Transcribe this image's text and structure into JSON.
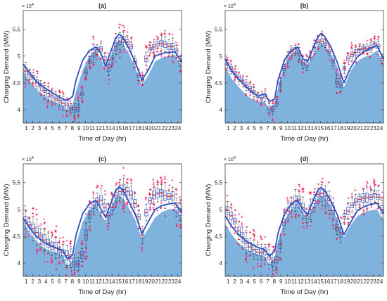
{
  "figure": {
    "colors": {
      "area": "#7fb2dd",
      "line": "#2a4fbf",
      "box": "#3b57c9",
      "whisker": "#222222",
      "median": "#e11b1b",
      "outlier": "#ff2aa8"
    }
  },
  "chart_data": [
    {
      "type": "area",
      "title": "(a)",
      "xlabel": "Time of Day (hr)",
      "ylabel": "Charging Demand (MW)",
      "y_exponent_label": "× 10^4",
      "xlim": [
        0,
        24
      ],
      "ylim": [
        37500,
        58500
      ],
      "xticks": [
        1,
        2,
        3,
        4,
        5,
        6,
        7,
        8,
        9,
        10,
        11,
        12,
        13,
        14,
        15,
        16,
        17,
        18,
        19,
        20,
        21,
        22,
        23,
        24
      ],
      "yticks": [
        {
          "value": 40000,
          "label": "4"
        },
        {
          "value": 45000,
          "label": "4.5"
        },
        {
          "value": 50000,
          "label": "5"
        },
        {
          "value": 55000,
          "label": "5.5"
        }
      ],
      "x": [
        0,
        1,
        2,
        3,
        4,
        5,
        6,
        6.7,
        7.5,
        8,
        9,
        10,
        11,
        11.8,
        12.5,
        13,
        14,
        14.5,
        15,
        16,
        17,
        18,
        19,
        20,
        21,
        22,
        23,
        24
      ],
      "area": [
        47000,
        45300,
        43800,
        42800,
        41900,
        41300,
        40700,
        39900,
        41000,
        43500,
        47300,
        50000,
        51000,
        49500,
        47200,
        49000,
        52300,
        53000,
        52500,
        50500,
        47800,
        44500,
        46500,
        49000,
        49700,
        50000,
        50200,
        48000
      ],
      "line": [
        48500,
        46800,
        45300,
        44300,
        43500,
        42700,
        42000,
        41700,
        42500,
        45500,
        49200,
        51000,
        51700,
        50500,
        48000,
        50000,
        53300,
        54100,
        53700,
        51500,
        48800,
        45500,
        47500,
        50000,
        50500,
        50700,
        50800,
        49000
      ],
      "boxes": [
        47200,
        46500,
        46000,
        45000,
        44500,
        43600,
        43000,
        42600,
        42000,
        41700,
        41200,
        40800,
        40300,
        40000,
        40400,
        43000,
        47000,
        49000,
        50500,
        51200,
        51300,
        49300,
        47800,
        49600,
        51800,
        52800,
        53100,
        52600,
        51800,
        49000,
        46400,
        45500,
        49500,
        51300,
        51700,
        52300,
        52400,
        52200,
        51800,
        51800,
        51000,
        49000
      ],
      "spread": 1
    },
    {
      "type": "area",
      "title": "(b)",
      "xlabel": "Time of Day (hr)",
      "ylabel": "Charging Demand (MW)",
      "y_exponent_label": "× 10^4",
      "xlim": [
        0,
        24
      ],
      "ylim": [
        37500,
        58500
      ],
      "xticks": [
        1,
        2,
        3,
        4,
        5,
        6,
        7,
        8,
        9,
        10,
        11,
        12,
        13,
        14,
        15,
        16,
        17,
        18,
        19,
        20,
        21,
        22,
        23,
        24
      ],
      "yticks": [
        {
          "value": 40000,
          "label": "4"
        },
        {
          "value": 45000,
          "label": "4.5"
        },
        {
          "value": 50000,
          "label": "5"
        },
        {
          "value": 55000,
          "label": "5.5"
        }
      ],
      "x": [
        0,
        1,
        2,
        3,
        4,
        5,
        6,
        6.7,
        7.5,
        8,
        9,
        10,
        11,
        11.8,
        12.5,
        13,
        14,
        14.5,
        15,
        16,
        17,
        18,
        19,
        20,
        21,
        22,
        23,
        24
      ],
      "area": [
        48000,
        45800,
        44300,
        43000,
        42000,
        41500,
        41500,
        40000,
        41200,
        44000,
        48500,
        50300,
        51200,
        49000,
        48300,
        49500,
        51800,
        52300,
        52200,
        50500,
        48000,
        44200,
        47200,
        49000,
        49800,
        50200,
        51000,
        48500
      ],
      "line": [
        49500,
        47200,
        45700,
        44500,
        43300,
        42500,
        43000,
        41500,
        42000,
        45500,
        49300,
        51000,
        51700,
        49500,
        49000,
        50500,
        53500,
        54200,
        53800,
        51800,
        48800,
        45000,
        47800,
        49800,
        50800,
        51400,
        52000,
        49500
      ],
      "boxes": [
        48500,
        47600,
        46800,
        46100,
        45400,
        44600,
        44000,
        43300,
        42600,
        42000,
        42500,
        40300,
        40100,
        41200,
        44800,
        47700,
        49700,
        50800,
        51300,
        50500,
        48800,
        48300,
        49800,
        51600,
        52600,
        52800,
        52300,
        50800,
        49100,
        45300,
        44600,
        47700,
        49600,
        50300,
        50700,
        51200,
        51500,
        51400,
        51600,
        52400,
        51800,
        49500
      ],
      "spread": 0.75
    },
    {
      "type": "area",
      "title": "(c)",
      "xlabel": "Time of Day (hr)",
      "ylabel": "Charging Demand (MW)",
      "y_exponent_label": "× 10^4",
      "xlim": [
        0,
        24
      ],
      "ylim": [
        37500,
        58500
      ],
      "xticks": [
        1,
        2,
        3,
        4,
        5,
        6,
        7,
        8,
        9,
        10,
        11,
        12,
        13,
        14,
        15,
        16,
        17,
        18,
        19,
        20,
        21,
        22,
        23,
        24
      ],
      "yticks": [
        {
          "value": 40000,
          "label": "4"
        },
        {
          "value": 45000,
          "label": "4.5"
        },
        {
          "value": 50000,
          "label": "5"
        },
        {
          "value": 55000,
          "label": "5.5"
        }
      ],
      "x": [
        0,
        1,
        2,
        3,
        4,
        5,
        6,
        6.7,
        7.5,
        8,
        9,
        10,
        11,
        11.8,
        12.5,
        13,
        14,
        14.5,
        15,
        16,
        17,
        18,
        19,
        20,
        21,
        22,
        23,
        24
      ],
      "area": [
        47600,
        45600,
        44100,
        43000,
        42300,
        41900,
        41400,
        39500,
        40500,
        43500,
        47600,
        49900,
        51000,
        49200,
        47500,
        49500,
        52200,
        52600,
        52300,
        50300,
        48000,
        44400,
        46500,
        48500,
        49500,
        50000,
        50100,
        48500
      ],
      "line": [
        48300,
        46500,
        45000,
        44000,
        43300,
        42800,
        42300,
        40800,
        41500,
        45200,
        49200,
        51000,
        51700,
        50000,
        48500,
        50200,
        53500,
        54200,
        53800,
        51500,
        49000,
        45500,
        47800,
        50000,
        50700,
        51000,
        51200,
        49500
      ],
      "boxes": [
        48000,
        47100,
        46400,
        45700,
        45000,
        44300,
        43700,
        43200,
        42800,
        42400,
        41900,
        41400,
        40900,
        39800,
        39800,
        41500,
        45200,
        49000,
        50800,
        51500,
        51700,
        50400,
        48800,
        50400,
        52600,
        53300,
        53700,
        53400,
        52700,
        51100,
        48600,
        45200,
        49400,
        51600,
        52700,
        53000,
        53100,
        52600,
        52400,
        52500,
        50400,
        49500
      ],
      "spread": 1.5
    },
    {
      "type": "area",
      "title": "(d)",
      "xlabel": "Time of Day (hr)",
      "ylabel": "Charging Demand (MW)",
      "y_exponent_label": "× 10^4",
      "xlim": [
        0,
        24
      ],
      "ylim": [
        37500,
        58500
      ],
      "xticks": [
        1,
        2,
        3,
        4,
        5,
        6,
        7,
        8,
        9,
        10,
        11,
        12,
        13,
        14,
        15,
        16,
        17,
        18,
        19,
        20,
        21,
        22,
        23,
        24
      ],
      "yticks": [
        {
          "value": 40000,
          "label": "4"
        },
        {
          "value": 45000,
          "label": "4.5"
        },
        {
          "value": 50000,
          "label": "5"
        },
        {
          "value": 55000,
          "label": "5.5"
        }
      ],
      "x": [
        0,
        1,
        2,
        3,
        4,
        5,
        6,
        6.7,
        7.5,
        8,
        9,
        10,
        11,
        11.8,
        12.5,
        13,
        14,
        14.5,
        15,
        16,
        17,
        18,
        19,
        20,
        21,
        22,
        23,
        24
      ],
      "area": [
        47300,
        45300,
        43800,
        42700,
        42000,
        41500,
        41200,
        39800,
        41000,
        44000,
        48000,
        50000,
        51200,
        49300,
        48300,
        49700,
        52000,
        52500,
        52300,
        50500,
        48200,
        44800,
        47000,
        48700,
        49500,
        49800,
        50000,
        48000
      ],
      "line": [
        48800,
        46800,
        45300,
        44300,
        43500,
        42900,
        42500,
        41300,
        42200,
        45500,
        49200,
        51000,
        51700,
        50000,
        49000,
        50700,
        53500,
        54100,
        53700,
        51600,
        49000,
        45300,
        47500,
        49700,
        50500,
        50900,
        51200,
        49300
      ],
      "boxes": [
        49800,
        48800,
        47800,
        46000,
        44800,
        43700,
        43000,
        42500,
        42000,
        42000,
        42200,
        41100,
        40200,
        40600,
        43500,
        47600,
        49700,
        50900,
        51700,
        51800,
        50300,
        48800,
        50000,
        51600,
        52800,
        53000,
        52500,
        51600,
        49800,
        46600,
        45600,
        48700,
        49700,
        50800,
        51400,
        51900,
        52100,
        52200,
        52300,
        52900,
        52300,
        50000
      ],
      "spread": 1.3
    }
  ]
}
